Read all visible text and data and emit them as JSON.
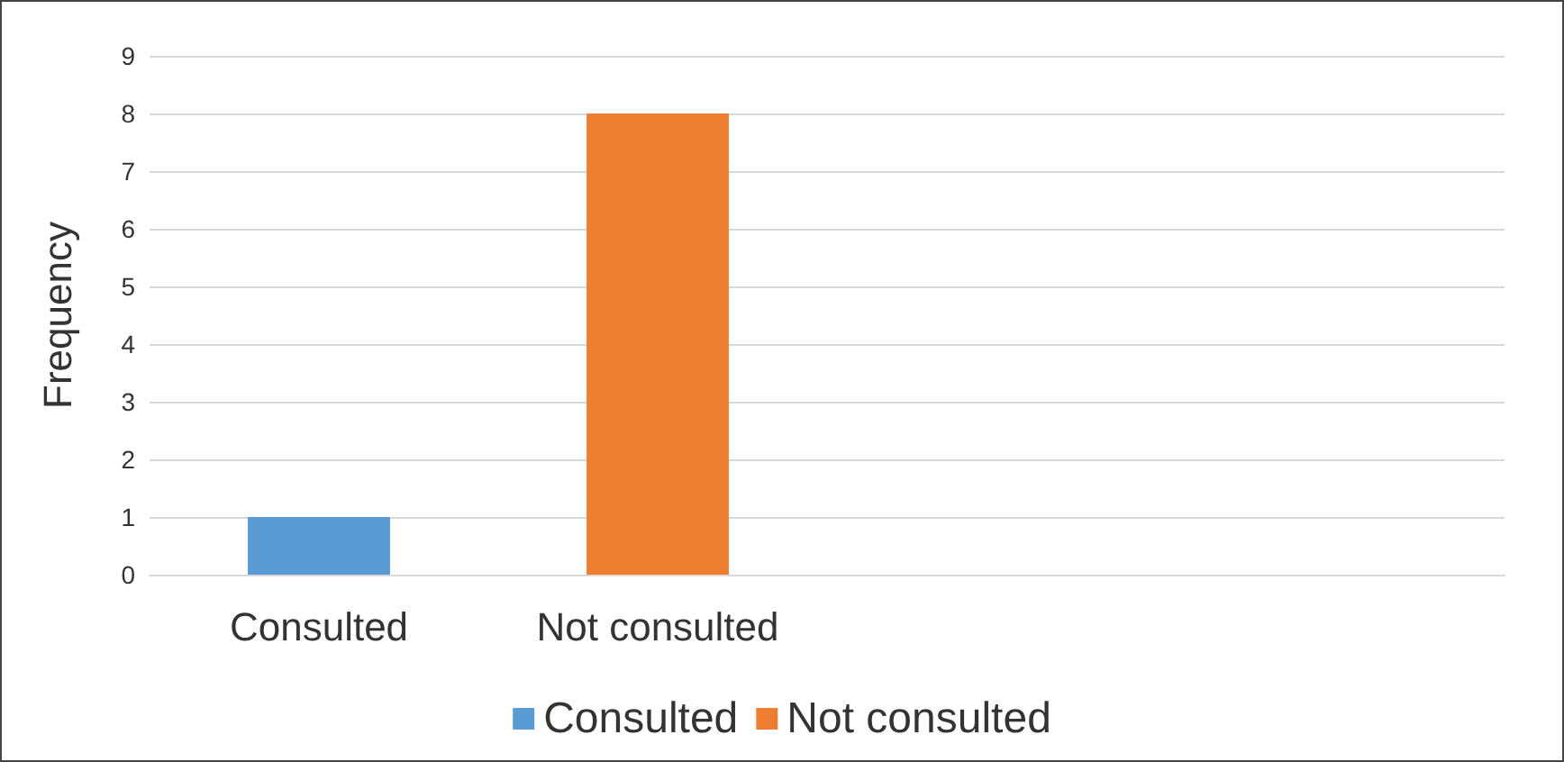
{
  "chart_data": {
    "type": "bar",
    "ylabel": "Frequency",
    "categories": [
      "Consulted",
      "Not consulted",
      null,
      null
    ],
    "series": [
      {
        "name": "Consulted",
        "color": "#5b9bd5",
        "values": [
          1,
          null,
          null,
          null
        ]
      },
      {
        "name": "Not consulted",
        "color": "#ed7d31",
        "values": [
          null,
          8,
          null,
          null
        ]
      }
    ],
    "ylim": [
      0,
      9
    ],
    "yticks": [
      0,
      1,
      2,
      3,
      4,
      5,
      6,
      7,
      8,
      9
    ],
    "grid": "y",
    "legend": "bottom"
  }
}
